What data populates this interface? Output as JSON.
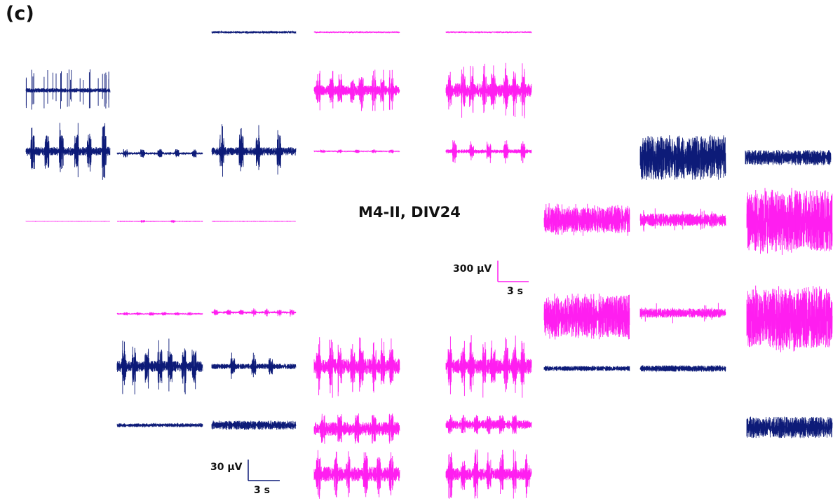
{
  "panel_letter": "(c)",
  "recording_label": "M4-II, DIV24",
  "scale_bars": {
    "magenta_voltage": "300 µV",
    "magenta_time": "3 s",
    "navy_voltage": "30 µV",
    "navy_time": "3 s"
  },
  "colors": {
    "navy": "#0d1b78",
    "magenta": "#ff1ef0",
    "text": "#111111"
  },
  "chart_data": {
    "type": "line",
    "description_of_series": "Multi-electrode array voltage traces; each trace spans about 9 s of recording",
    "title": "M4-II, DIV24",
    "scale": {
      "navy_traces": {
        "voltage": "30 µV",
        "time": "3 s"
      },
      "magenta_traces": {
        "voltage": "300 µV",
        "time": "3 s"
      }
    },
    "traces": [
      {
        "id": "t01",
        "color": "navy",
        "noise": 0.2,
        "bursts": []
      },
      {
        "id": "t02",
        "color": "magenta",
        "noise": 0.15,
        "bursts": []
      },
      {
        "id": "t03",
        "color": "magenta",
        "noise": 0.15,
        "bursts": []
      },
      {
        "id": "t04",
        "color": "navy",
        "noise": 0.1,
        "spikes": 26
      },
      {
        "id": "t05",
        "color": "magenta",
        "noise": 0.25,
        "bursts": [
          0.05,
          0.2,
          0.3,
          0.45,
          0.55,
          0.7,
          0.8,
          0.9
        ],
        "spikes": 22
      },
      {
        "id": "t06",
        "color": "magenta",
        "noise": 0.25,
        "bursts": [
          0.05,
          0.2,
          0.3,
          0.45,
          0.55,
          0.7,
          0.8,
          0.9
        ],
        "spikes": 22
      },
      {
        "id": "t07",
        "color": "navy",
        "noise": 0.15,
        "bursts": [
          0.08,
          0.25,
          0.42,
          0.6,
          0.75,
          0.93
        ],
        "spikes": 14
      },
      {
        "id": "t08",
        "color": "navy",
        "noise": 0.15,
        "bursts": [
          0.1,
          0.3,
          0.5,
          0.7,
          0.9
        ],
        "spikes": 0
      },
      {
        "id": "t09",
        "color": "navy",
        "noise": 0.15,
        "bursts": [
          0.12,
          0.35,
          0.55,
          0.8
        ],
        "spikes": 6
      },
      {
        "id": "t10",
        "color": "magenta",
        "noise": 0.1,
        "bursts": [
          0.1,
          0.3,
          0.5,
          0.7,
          0.9
        ],
        "spikes": 0
      },
      {
        "id": "t11",
        "color": "magenta",
        "noise": 0.15,
        "bursts": [
          0.1,
          0.3,
          0.5,
          0.7,
          0.9
        ],
        "spikes": 16
      },
      {
        "id": "t12",
        "color": "navy",
        "noise": 0.85,
        "bursts": [],
        "spikes": 0
      },
      {
        "id": "t13",
        "color": "navy",
        "noise": 0.55,
        "bursts": [],
        "spikes": 0
      },
      {
        "id": "t14",
        "color": "magenta",
        "noise": 0.03,
        "bursts": []
      },
      {
        "id": "t15",
        "color": "magenta",
        "noise": 0.04,
        "bursts": [
          0.3,
          0.65
        ]
      },
      {
        "id": "t16",
        "color": "magenta",
        "noise": 0.04,
        "bursts": []
      },
      {
        "id": "t17",
        "color": "magenta",
        "noise": 0.75,
        "bursts": [],
        "spikes": 30
      },
      {
        "id": "t18",
        "color": "magenta",
        "noise": 0.55,
        "bursts": [],
        "spikes": 10
      },
      {
        "id": "t19",
        "color": "magenta",
        "noise": 0.9,
        "bursts": [],
        "spikes": 40
      },
      {
        "id": "t20",
        "color": "magenta",
        "noise": 0.9,
        "bursts": [],
        "spikes": 40
      },
      {
        "id": "t21",
        "color": "magenta",
        "noise": 0.45,
        "bursts": [],
        "spikes": 8
      },
      {
        "id": "t22",
        "color": "magenta",
        "noise": 0.9,
        "bursts": [],
        "spikes": 40
      },
      {
        "id": "t23",
        "color": "magenta",
        "noise": 0.15,
        "bursts": [
          0.1,
          0.25,
          0.4,
          0.55,
          0.7,
          0.85
        ],
        "spikes": 0
      },
      {
        "id": "t24",
        "color": "magenta",
        "noise": 0.2,
        "bursts": [
          0.05,
          0.2,
          0.35,
          0.5,
          0.65,
          0.8,
          0.95
        ],
        "spikes": 14
      },
      {
        "id": "t25",
        "color": "navy",
        "noise": 0.2,
        "bursts": [
          0.08,
          0.2,
          0.35,
          0.5,
          0.62,
          0.78,
          0.9
        ],
        "spikes": 12
      },
      {
        "id": "t26",
        "color": "navy",
        "noise": 0.2,
        "bursts": [
          0.25,
          0.5,
          0.7
        ],
        "spikes": 4
      },
      {
        "id": "t27",
        "color": "magenta",
        "noise": 0.25,
        "bursts": [
          0.05,
          0.2,
          0.3,
          0.45,
          0.55,
          0.7,
          0.8,
          0.9
        ],
        "spikes": 22
      },
      {
        "id": "t28",
        "color": "magenta",
        "noise": 0.25,
        "bursts": [
          0.05,
          0.2,
          0.3,
          0.45,
          0.55,
          0.7,
          0.8,
          0.9
        ],
        "spikes": 22
      },
      {
        "id": "t29",
        "color": "navy",
        "noise": 0.35,
        "bursts": [],
        "spikes": 0
      },
      {
        "id": "t30",
        "color": "navy",
        "noise": 0.45,
        "bursts": [],
        "spikes": 0
      },
      {
        "id": "t31",
        "color": "navy",
        "noise": 0.45,
        "bursts": [],
        "spikes": 0
      },
      {
        "id": "t32",
        "color": "navy",
        "noise": 0.55,
        "bursts": [],
        "spikes": 0
      },
      {
        "id": "t33",
        "color": "magenta",
        "noise": 0.55,
        "bursts": [
          0.1,
          0.3,
          0.5,
          0.7,
          0.9
        ],
        "spikes": 20
      },
      {
        "id": "t34",
        "color": "magenta",
        "noise": 0.45,
        "bursts": [
          0.05,
          0.2,
          0.35,
          0.5,
          0.65,
          0.8
        ],
        "spikes": 18
      },
      {
        "id": "t35",
        "color": "navy",
        "noise": 0.7,
        "bursts": [],
        "spikes": 0
      },
      {
        "id": "t36",
        "color": "magenta",
        "noise": 0.3,
        "bursts": [
          0.05,
          0.25,
          0.4,
          0.6,
          0.75,
          0.9
        ],
        "spikes": 28
      },
      {
        "id": "t37",
        "color": "magenta",
        "noise": 0.25,
        "bursts": [
          0.05,
          0.2,
          0.35,
          0.5,
          0.65,
          0.8,
          0.95
        ],
        "spikes": 28
      }
    ]
  }
}
